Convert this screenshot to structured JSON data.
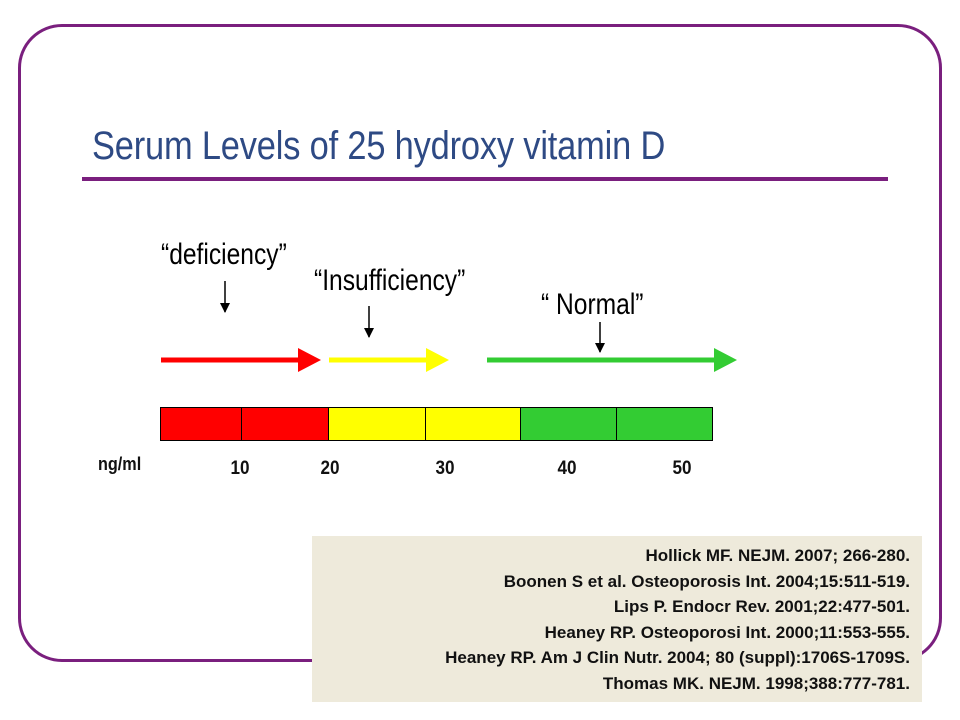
{
  "title": "Serum Levels of 25 hydroxy vitamin D",
  "labels": {
    "deficiency": "“deficiency”",
    "insufficiency": "“Insufficiency”",
    "normal": "“ Normal”"
  },
  "scale": {
    "unit": "ng/ml",
    "ticks": [
      "10",
      "20",
      "30",
      "40",
      "50"
    ]
  },
  "colors": {
    "frame": "#7a1f7e",
    "title": "#2e4a84",
    "deficiency": "#ff0000",
    "insufficiency": "#ffff00",
    "normal": "#33cc33",
    "refs_bg": "#eeeadb"
  },
  "references": [
    "Hollick MF. NEJM. 2007; 266-280.",
    "Boonen S et al. Osteoporosis Int. 2004;15:511-519.",
    "Lips P. Endocr Rev. 2001;22:477-501.",
    "Heaney RP. Osteoporosi Int. 2000;11:553-555.",
    "Heaney RP. Am J Clin Nutr. 2004; 80 (suppl):1706S-1709S.",
    "Thomas MK. NEJM. 1998;388:777-781."
  ]
}
